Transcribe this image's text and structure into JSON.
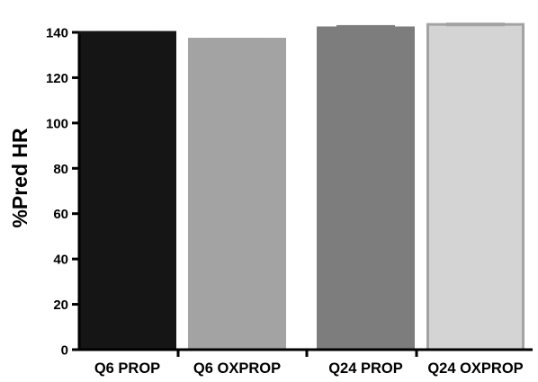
{
  "chart_data": {
    "type": "bar",
    "title": "",
    "xlabel": "",
    "ylabel": "%Pred HR",
    "ylim": [
      0,
      150
    ],
    "yticks": [
      0,
      20,
      40,
      60,
      80,
      100,
      120,
      140
    ],
    "categories": [
      "Q6 PROP",
      "Q6 OXPROP",
      "Q24 PROP",
      "Q24 OXPROP"
    ],
    "values": [
      140,
      137,
      142,
      143.5
    ],
    "errors": [
      0.6,
      0.6,
      1.2,
      0.8
    ],
    "colors": {
      "bars": [
        "#151515",
        "#a3a3a3",
        "#7d7d7d",
        "#d4d4d4"
      ],
      "bar_edges": [
        "#151515",
        "#a3a3a3",
        "#7d7d7d",
        "#a3a3a3"
      ],
      "axis": "#000000"
    },
    "grid": false,
    "legend": "none"
  }
}
